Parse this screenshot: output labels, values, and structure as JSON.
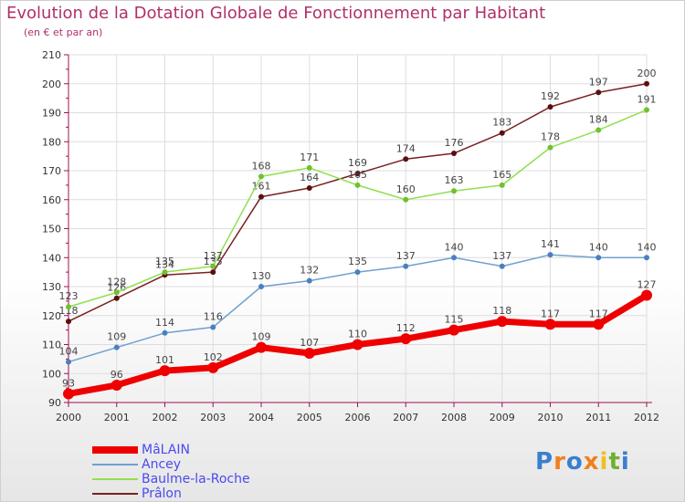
{
  "title": "Evolution de la Dotation Globale de Fonctionnement par Habitant",
  "subtitle": "(en € et par an)",
  "logo_text": "Proxiti",
  "colors": {
    "title": "#b0306a",
    "axis": "#a01050",
    "grid": "#dddddd",
    "legend_text": "#4a4af0"
  },
  "chart_data": {
    "type": "line",
    "x": [
      2000,
      2001,
      2002,
      2003,
      2004,
      2005,
      2006,
      2007,
      2008,
      2009,
      2010,
      2011,
      2012
    ],
    "ylim": [
      90,
      210
    ],
    "yticks": [
      90,
      100,
      110,
      120,
      130,
      140,
      150,
      160,
      170,
      180,
      190,
      200,
      210
    ],
    "grid": true,
    "legend_position": "bottom-left",
    "series": [
      {
        "name": "Prâlon",
        "color": "#7a2020",
        "marker": "#5a1010",
        "values": [
          118,
          126,
          134,
          135,
          161,
          164,
          169,
          174,
          176,
          183,
          192,
          197,
          200
        ]
      },
      {
        "name": "Baulme-la-Roche",
        "color": "#90e050",
        "marker": "#70c030",
        "values": [
          123,
          128,
          135,
          137,
          168,
          171,
          165,
          160,
          163,
          165,
          178,
          184,
          191
        ]
      },
      {
        "name": "Ancey",
        "color": "#6fa0d0",
        "marker": "#4a80c0",
        "values": [
          104,
          109,
          114,
          116,
          130,
          132,
          135,
          137,
          140,
          137,
          141,
          140,
          140
        ]
      },
      {
        "name": "MâLAIN",
        "color": "#ee0000",
        "marker": "#ee0000",
        "values": [
          93,
          96,
          101,
          102,
          109,
          107,
          110,
          112,
          115,
          118,
          117,
          117,
          127
        ]
      }
    ]
  }
}
